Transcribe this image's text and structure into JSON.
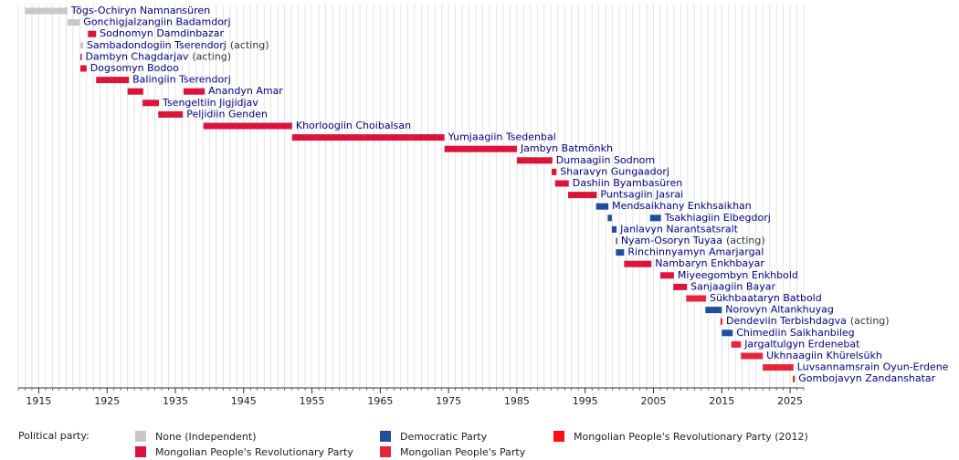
{
  "chart_data": {
    "type": "timeline",
    "legend_title": "Political party:",
    "legend_position": "bottom",
    "grid": true,
    "xlim": [
      1912,
      2027
    ],
    "xticks": [
      1915,
      1925,
      1935,
      1945,
      1955,
      1965,
      1975,
      1985,
      1995,
      2005,
      2015,
      2025
    ],
    "minor_xticks": [
      1912,
      1913,
      1914,
      1915,
      1916,
      1917,
      1918,
      1919,
      1920,
      1921,
      1922,
      1923,
      1924,
      1925,
      1926,
      1927,
      1928,
      1929,
      1930,
      1931,
      1932,
      1933,
      1934,
      1935,
      1936,
      1937,
      1938,
      1939,
      1940,
      1941,
      1942,
      1943,
      1944,
      1945,
      1946,
      1947,
      1948,
      1949,
      1950,
      1951,
      1952,
      1953,
      1954,
      1955,
      1956,
      1957,
      1958,
      1959,
      1960,
      1961,
      1962,
      1963,
      1964,
      1965,
      1966,
      1967,
      1968,
      1969,
      1970,
      1971,
      1972,
      1973,
      1974,
      1975,
      1976,
      1977,
      1978,
      1979,
      1980,
      1981,
      1982,
      1983,
      1984,
      1985,
      1986,
      1987,
      1988,
      1989,
      1990,
      1991,
      1992,
      1993,
      1994,
      1995,
      1996,
      1997,
      1998,
      1999,
      2000,
      2001,
      2002,
      2003,
      2004,
      2005,
      2006,
      2007,
      2008,
      2009,
      2010,
      2011,
      2012,
      2013,
      2014,
      2015,
      2016,
      2017,
      2018,
      2019,
      2020,
      2021,
      2022,
      2023,
      2024,
      2025,
      2026,
      2027
    ],
    "parties": [
      {
        "name": "None (Independent)",
        "color": "#c8c8c8"
      },
      {
        "name": "Mongolian People's Revolutionary Party",
        "color": "#dc143c"
      },
      {
        "name": "Democratic Party",
        "color": "#1f4e9c"
      },
      {
        "name": "Mongolian People's Party",
        "color": "#e8243c"
      },
      {
        "name": "Mongolian People's Revolutionary Party (2012)",
        "color": "#ff1010"
      }
    ],
    "rows": [
      {
        "name": "Tögs-Ochiryn Namnansüren",
        "bars": [
          {
            "start": 1913,
            "end": 1919.2,
            "party": 0
          }
        ]
      },
      {
        "name": "Gonchigjalzangiin Badamdorj",
        "bars": [
          {
            "start": 1919.2,
            "end": 1921,
            "party": 0
          }
        ]
      },
      {
        "name": "Sodnomyn Damdinbazar",
        "bars": [
          {
            "start": 1922.2,
            "end": 1923.4,
            "party": 1
          }
        ]
      },
      {
        "name": "Sambadondogiin Tserendorj",
        "note": "(acting)",
        "bars": [
          {
            "start": 1921.1,
            "end": 1921.5,
            "party": 0
          }
        ]
      },
      {
        "name": "Dambyn Chagdarjav",
        "note": "(acting)",
        "bars": [
          {
            "start": 1921.1,
            "end": 1921.3,
            "party": 1
          }
        ]
      },
      {
        "name": "Dogsomyn Bodoo",
        "bars": [
          {
            "start": 1921.1,
            "end": 1922,
            "party": 1
          }
        ]
      },
      {
        "name": "Balingiin Tserendorj",
        "bars": [
          {
            "start": 1923.4,
            "end": 1928.2,
            "party": 1
          }
        ]
      },
      {
        "name": "Anandyn Amar",
        "bars": [
          {
            "start": 1928,
            "end": 1930.3,
            "party": 1
          },
          {
            "start": 1936.2,
            "end": 1939.3,
            "party": 1
          }
        ]
      },
      {
        "name": "Tsengeltiin Jigjidjav",
        "bars": [
          {
            "start": 1930.2,
            "end": 1932.6,
            "party": 1
          }
        ]
      },
      {
        "name": "Peljidiin Genden",
        "bars": [
          {
            "start": 1932.5,
            "end": 1936.1,
            "party": 1
          }
        ]
      },
      {
        "name": "Khorloogiin Choibalsan",
        "bars": [
          {
            "start": 1939.1,
            "end": 1952.1,
            "party": 1
          }
        ]
      },
      {
        "name": "Yumjaagiin Tsedenbal",
        "bars": [
          {
            "start": 1952.1,
            "end": 1974.4,
            "party": 1
          }
        ]
      },
      {
        "name": "Jambyn Batmönkh",
        "bars": [
          {
            "start": 1974.4,
            "end": 1985,
            "party": 1
          }
        ]
      },
      {
        "name": "Dumaagiin Sodnom",
        "bars": [
          {
            "start": 1985,
            "end": 1990.2,
            "party": 1
          }
        ]
      },
      {
        "name": "Sharavyn Gungaadorj",
        "bars": [
          {
            "start": 1990.1,
            "end": 1990.8,
            "party": 1
          }
        ]
      },
      {
        "name": "Dashiin Byambasüren",
        "bars": [
          {
            "start": 1990.6,
            "end": 1992.6,
            "party": 1
          }
        ]
      },
      {
        "name": "Puntsagiin Jasrai",
        "bars": [
          {
            "start": 1992.5,
            "end": 1996.7,
            "party": 1
          }
        ]
      },
      {
        "name": "Mendsaikhany Enkhsaikhan",
        "bars": [
          {
            "start": 1996.6,
            "end": 1998.4,
            "party": 2
          }
        ]
      },
      {
        "name": "Tsakhiagiin Elbegdorj",
        "bars": [
          {
            "start": 1998.3,
            "end": 1998.9,
            "party": 2
          },
          {
            "start": 2004.5,
            "end": 2006.1,
            "party": 2
          }
        ]
      },
      {
        "name": "Janlavyn Narantsatsralt",
        "bars": [
          {
            "start": 1998.9,
            "end": 1999.6,
            "party": 2
          }
        ]
      },
      {
        "name": "Nyam-Osoryn Tuyaa",
        "note": "(acting)",
        "bars": [
          {
            "start": 1999.5,
            "end": 1999.7,
            "party": 2
          }
        ]
      },
      {
        "name": "Rinchinnyamyn Amarjargal",
        "bars": [
          {
            "start": 1999.5,
            "end": 2000.7,
            "party": 2
          }
        ]
      },
      {
        "name": "Nambaryn Enkhbayar",
        "bars": [
          {
            "start": 2000.7,
            "end": 2004.7,
            "party": 1
          }
        ]
      },
      {
        "name": "Miyeegombyn Enkhbold",
        "bars": [
          {
            "start": 2006,
            "end": 2008,
            "party": 1
          }
        ]
      },
      {
        "name": "Sanjaagiin Bayar",
        "bars": [
          {
            "start": 2007.9,
            "end": 2009.9,
            "party": 1
          }
        ]
      },
      {
        "name": "Sükhbaataryn Batbold",
        "bars": [
          {
            "start": 2009.8,
            "end": 2012.7,
            "party": 3
          }
        ]
      },
      {
        "name": "Norovyn Altankhuyag",
        "bars": [
          {
            "start": 2012.6,
            "end": 2015,
            "party": 2
          }
        ]
      },
      {
        "name": "Dendeviin Terbishdagva",
        "note": "(acting)",
        "bars": [
          {
            "start": 2014.8,
            "end": 2015.1,
            "party": 3
          }
        ]
      },
      {
        "name": "Chimediin Saikhanbileg",
        "bars": [
          {
            "start": 2015,
            "end": 2016.6,
            "party": 2
          }
        ]
      },
      {
        "name": "Jargaltulgyn Erdenebat",
        "bars": [
          {
            "start": 2016.4,
            "end": 2017.8,
            "party": 3
          }
        ]
      },
      {
        "name": "Ukhnaagiin Khürelsükh",
        "bars": [
          {
            "start": 2017.8,
            "end": 2021,
            "party": 3
          }
        ]
      },
      {
        "name": "Luvsannamsrain Oyun-Erdene",
        "bars": [
          {
            "start": 2021,
            "end": 2025.5,
            "party": 3
          }
        ]
      },
      {
        "name": "Gombojavyn Zandanshatar",
        "bars": [
          {
            "start": 2025.4,
            "end": 2025.7,
            "party": 3
          }
        ]
      }
    ]
  }
}
